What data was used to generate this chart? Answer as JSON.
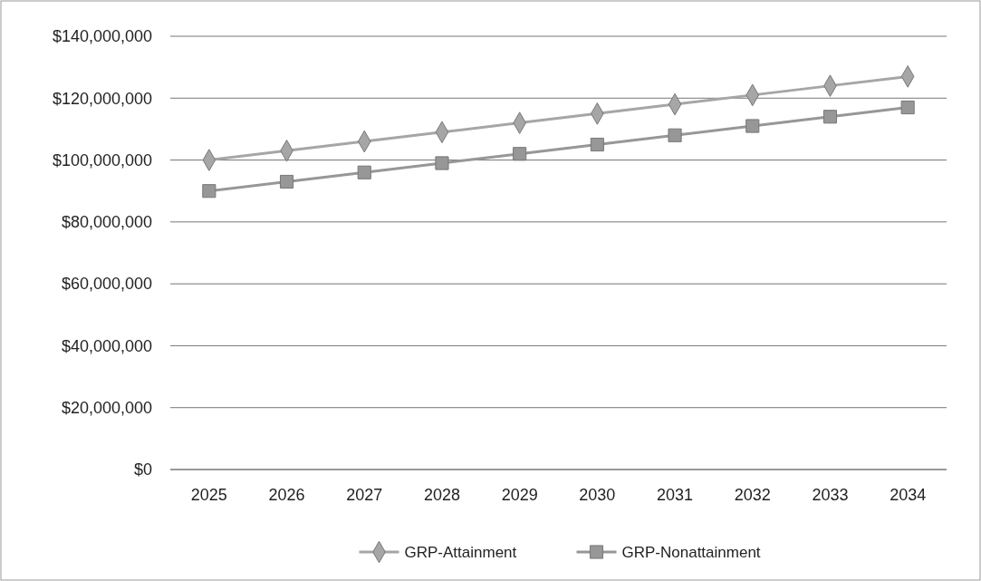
{
  "chart_data": {
    "type": "line",
    "categories": [
      "2025",
      "2026",
      "2027",
      "2028",
      "2029",
      "2030",
      "2031",
      "2032",
      "2033",
      "2034"
    ],
    "series": [
      {
        "name": "GRP-Attainment",
        "color": "#a6a6a6",
        "marker": "diamond",
        "values": [
          100000000,
          103000000,
          106000000,
          109000000,
          112000000,
          115000000,
          118000000,
          121000000,
          124000000,
          127000000
        ]
      },
      {
        "name": "GRP-Nonattainment",
        "color": "#979797",
        "marker": "square",
        "values": [
          90000000,
          93000000,
          96000000,
          99000000,
          102000000,
          105000000,
          108000000,
          111000000,
          114000000,
          117000000
        ]
      }
    ],
    "ylim": [
      0,
      140000000
    ],
    "yticks": [
      {
        "value": 0,
        "label": "$0"
      },
      {
        "value": 20000000,
        "label": "$20,000,000"
      },
      {
        "value": 40000000,
        "label": "$40,000,000"
      },
      {
        "value": 60000000,
        "label": "$60,000,000"
      },
      {
        "value": 80000000,
        "label": "$80,000,000"
      },
      {
        "value": 100000000,
        "label": "$100,000,000"
      },
      {
        "value": 120000000,
        "label": "$120,000,000"
      },
      {
        "value": 140000000,
        "label": "$140,000,000"
      }
    ],
    "grid": "y",
    "legend": "bottom",
    "line_style": "solid"
  }
}
